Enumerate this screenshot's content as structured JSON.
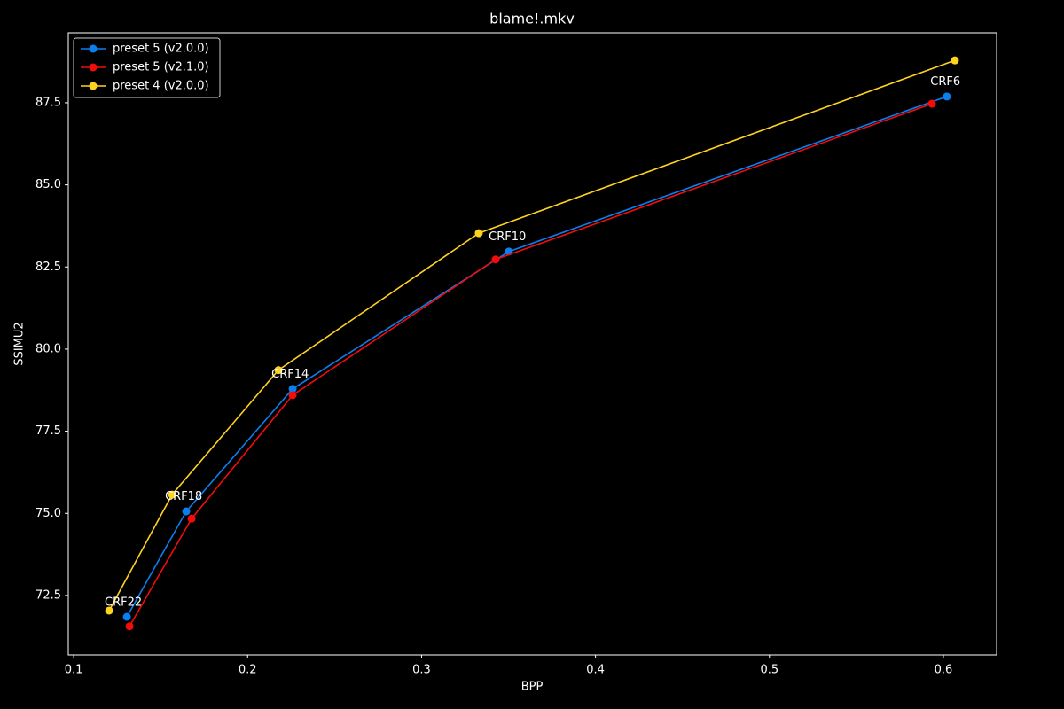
{
  "chart_data": {
    "type": "line",
    "title": "blame!.mkv",
    "x_label": "BPP",
    "y_label": "SSIMU2",
    "xlim": [
      0.0969,
      0.6306
    ],
    "ylim": [
      70.69,
      89.63
    ],
    "xticks": [
      0.1,
      0.2,
      0.3,
      0.4,
      0.5,
      0.6
    ],
    "yticks": [
      72.5,
      {
        "value": 75,
        "label": "75.0"
      },
      77.5,
      {
        "value": 80,
        "label": "80.0"
      },
      82.5,
      {
        "value": 85,
        "label": "85.0"
      },
      87.5
    ],
    "legend": "upper left",
    "series": [
      {
        "name": "preset 5 (v2.0.0)",
        "color": "#0a7ff0",
        "x": [
          0.1306,
          0.1647,
          0.2259,
          0.3502,
          0.602
        ],
        "values": [
          71.85,
          75.06,
          78.79,
          82.97,
          87.69
        ]
      },
      {
        "name": "preset 5 (v2.1.0)",
        "color": "#f20c0c",
        "x": [
          0.1321,
          0.1678,
          0.2259,
          0.3426,
          0.5934
        ],
        "values": [
          71.56,
          74.84,
          78.6,
          82.73,
          87.47
        ]
      },
      {
        "name": "preset 4 (v2.0.0)",
        "color": "#ffd21f",
        "x": [
          0.1204,
          0.1566,
          0.2177,
          0.3329,
          0.6066
        ],
        "values": [
          72.04,
          75.57,
          79.36,
          83.53,
          88.79
        ]
      }
    ],
    "annotations": [
      {
        "text": "CRF22",
        "x": 0.1178,
        "y": 72.28
      },
      {
        "text": "CRF18",
        "x": 0.1525,
        "y": 75.5
      },
      {
        "text": "CRF14",
        "x": 0.2137,
        "y": 79.23
      },
      {
        "text": "CRF10",
        "x": 0.3386,
        "y": 83.41
      },
      {
        "text": "CRF6",
        "x": 0.5925,
        "y": 88.13
      }
    ]
  }
}
